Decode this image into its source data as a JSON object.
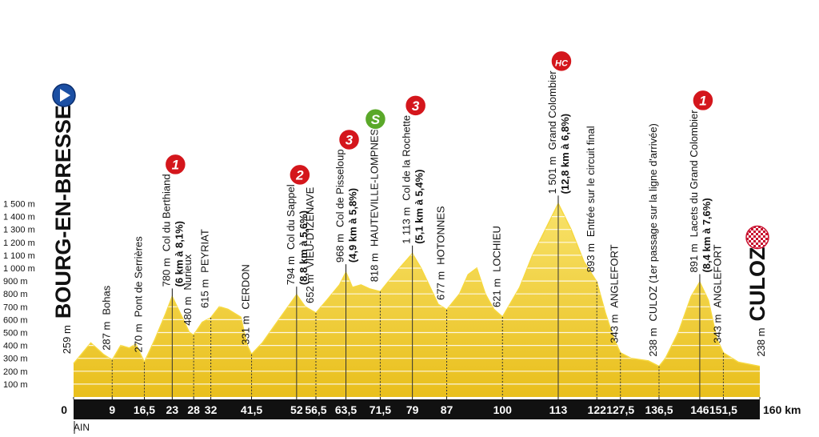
{
  "chart_data": {
    "type": "area",
    "color": "#f6d83e",
    "xlim": [
      0,
      160
    ],
    "ylim": [
      0,
      1500
    ],
    "x": [
      0,
      4,
      7,
      9,
      11,
      13,
      14.5,
      16.5,
      19,
      21.5,
      23,
      25,
      27,
      28,
      30,
      32,
      34,
      36,
      39,
      40.5,
      41.5,
      44,
      47,
      50,
      52,
      54,
      56.5,
      59,
      62,
      63.5,
      65,
      67,
      69,
      71.5,
      73,
      76,
      79,
      81,
      83,
      85,
      87,
      90,
      92,
      94,
      96,
      98,
      100,
      104,
      107,
      110,
      113,
      116,
      119,
      122,
      124,
      126,
      127.5,
      130,
      134,
      136.5,
      138,
      141,
      144,
      146,
      148,
      150,
      151.5,
      155,
      160
    ],
    "values": [
      259,
      420,
      330,
      287,
      400,
      380,
      410,
      270,
      450,
      650,
      780,
      640,
      500,
      480,
      580,
      615,
      700,
      680,
      620,
      400,
      331,
      420,
      560,
      700,
      794,
      700,
      652,
      750,
      870,
      968,
      850,
      870,
      840,
      818,
      880,
      1000,
      1113,
      1000,
      860,
      720,
      677,
      800,
      950,
      1000,
      800,
      680,
      621,
      850,
      1100,
      1300,
      1501,
      1300,
      1050,
      893,
      650,
      450,
      343,
      300,
      280,
      238,
      300,
      500,
      780,
      891,
      750,
      450,
      343,
      270,
      238
    ],
    "yticks": [
      {
        "value": 100,
        "label": "100 m"
      },
      {
        "value": 200,
        "label": "200 m"
      },
      {
        "value": 300,
        "label": "300 m"
      },
      {
        "value": 400,
        "label": "400 m"
      },
      {
        "value": 500,
        "label": "500 m"
      },
      {
        "value": 600,
        "label": "600 m"
      },
      {
        "value": 700,
        "label": "700 m"
      },
      {
        "value": 800,
        "label": "800 m"
      },
      {
        "value": 900,
        "label": "900 m"
      },
      {
        "value": 1000,
        "label": "1 000 m"
      },
      {
        "value": 1100,
        "label": "1 100 m"
      },
      {
        "value": 1200,
        "label": "1 200 m"
      },
      {
        "value": 1300,
        "label": "1 300 m"
      },
      {
        "value": 1400,
        "label": "1 400 m"
      },
      {
        "value": 1500,
        "label": "1 500 m"
      }
    ],
    "xticks": [
      0,
      9,
      {
        "value": 16.5,
        "label": "16,5"
      },
      23,
      28,
      32,
      {
        "value": 41.5,
        "label": "41,5"
      },
      52,
      {
        "value": 56.5,
        "label": "56,5"
      },
      {
        "value": 63.5,
        "label": "63,5"
      },
      {
        "value": 71.5,
        "label": "71,5"
      },
      79,
      87,
      100,
      113,
      122,
      {
        "value": 127.5,
        "label": "127,5"
      },
      {
        "value": 136.5,
        "label": "136,5"
      },
      146,
      {
        "value": 151.5,
        "label": "151,5"
      },
      {
        "value": 160,
        "label": "160 km"
      }
    ],
    "region": "AIN",
    "waypoints": [
      {
        "km": 0,
        "altitude": {
          "value": 259,
          "label": "259 m"
        },
        "name": "BOURG-EN-BRESSE"
      },
      {
        "km": 9,
        "altitude": {
          "value": 287,
          "label": "287 m"
        },
        "name": "Bohas"
      },
      {
        "km": 16.5,
        "altitude": {
          "value": 270,
          "label": "270 m"
        },
        "name": "Pont de Serrières"
      },
      {
        "km": 23,
        "altitude": {
          "value": 780,
          "label": "780 m"
        },
        "name": "Col du Berthiand",
        "climb": "(6 km à 8,1%)",
        "category": "1"
      },
      {
        "km": 28,
        "altitude": {
          "value": 480,
          "label": "480 m"
        },
        "name": "Nurieux"
      },
      {
        "km": 32,
        "altitude": {
          "value": 615,
          "label": "615 m"
        },
        "name": "PEYRIAT"
      },
      {
        "km": 41.5,
        "altitude": {
          "value": 331,
          "label": "331 m"
        },
        "name": "CERDON"
      },
      {
        "km": 52,
        "altitude": {
          "value": 794,
          "label": "794 m"
        },
        "name": "Col du Sappel",
        "climb": "(8,8 km à 5,6%)",
        "category": "2"
      },
      {
        "km": 56.5,
        "altitude": {
          "value": 652,
          "label": "652 m"
        },
        "name": "VIEU-D'IZENAVE"
      },
      {
        "km": 63.5,
        "altitude": {
          "value": 968,
          "label": "968 m"
        },
        "name": "Col de Pisseloup",
        "climb": "(4,9 km à 5,8%)",
        "category": "3"
      },
      {
        "km": 71.5,
        "altitude": {
          "value": 818,
          "label": "818 m"
        },
        "name": "HAUTEVILLE-LOMPNES",
        "category": "S"
      },
      {
        "km": 79,
        "altitude": {
          "value": 1113,
          "label": "1 113 m"
        },
        "name": "Col de la Rochette",
        "climb": "(5,1 km à 5,4%)",
        "category": "3"
      },
      {
        "km": 87,
        "altitude": {
          "value": 677,
          "label": "677 m"
        },
        "name": "HOTONNES"
      },
      {
        "km": 100,
        "altitude": {
          "value": 621,
          "label": "621 m"
        },
        "name": "LOCHIEU"
      },
      {
        "km": 113,
        "altitude": {
          "value": 1501,
          "label": "1 501 m"
        },
        "name": "Grand Colombier",
        "climb": "(12,8 km à 6,8%)",
        "category": "HC"
      },
      {
        "km": 122,
        "altitude": {
          "value": 893,
          "label": "893 m"
        },
        "name": "Entrée sur le circuit final"
      },
      {
        "km": 127.5,
        "altitude": {
          "value": 343,
          "label": "343 m"
        },
        "name": "ANGLEFORT"
      },
      {
        "km": 136.5,
        "altitude": {
          "value": 238,
          "label": "238 m"
        },
        "name": "CULOZ (1er passage sur la ligne d'arrivée)"
      },
      {
        "km": 146,
        "altitude": {
          "value": 891,
          "label": "891 m"
        },
        "name": "Lacets du Grand Colombier",
        "climb": "(8,4 km à 7,6%)",
        "category": "1"
      },
      {
        "km": 151.5,
        "altitude": {
          "value": 343,
          "label": "343 m"
        },
        "name": "ANGLEFORT"
      },
      {
        "km": 160,
        "altitude": {
          "value": 238,
          "label": "238 m"
        },
        "name": "CULOZ"
      }
    ]
  }
}
